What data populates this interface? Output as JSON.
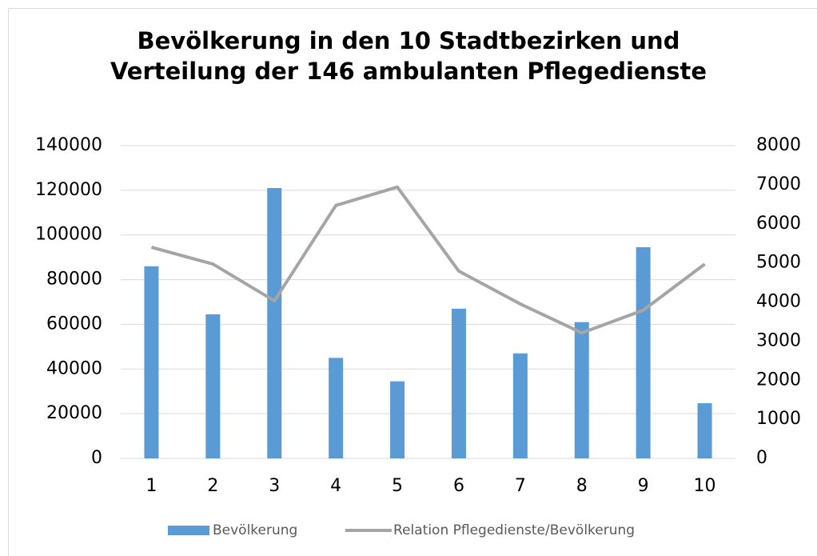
{
  "chart_data": {
    "type": "bar_line",
    "title": "Bevölkerung in den 10 Stadtbezirken und Verteilung der 146 ambulanten Pflegedienste",
    "categories": [
      "1",
      "2",
      "3",
      "4",
      "5",
      "6",
      "7",
      "8",
      "9",
      "10"
    ],
    "series": [
      {
        "name": "Bevölkerung",
        "type": "bar",
        "color": "#5b9bd5",
        "values": [
          86000,
          64500,
          121000,
          45000,
          34500,
          67000,
          47000,
          61000,
          94500,
          24700
        ]
      },
      {
        "name": "Relation Pflegedienste/Bevölkerung",
        "type": "line",
        "axis": "y2",
        "color": "#a5a5a5",
        "values": [
          5400,
          4970,
          4030,
          6470,
          6940,
          4790,
          3950,
          3210,
          3790,
          4970
        ]
      }
    ],
    "ylim": [
      0,
      140000
    ],
    "yticks": [
      0,
      20000,
      40000,
      60000,
      80000,
      100000,
      120000,
      140000
    ],
    "y2lim": [
      0,
      8000
    ],
    "y2ticks": [
      0,
      1000,
      2000,
      3000,
      4000,
      5000,
      6000,
      7000,
      8000
    ],
    "grid": true,
    "legend": "bottom"
  }
}
